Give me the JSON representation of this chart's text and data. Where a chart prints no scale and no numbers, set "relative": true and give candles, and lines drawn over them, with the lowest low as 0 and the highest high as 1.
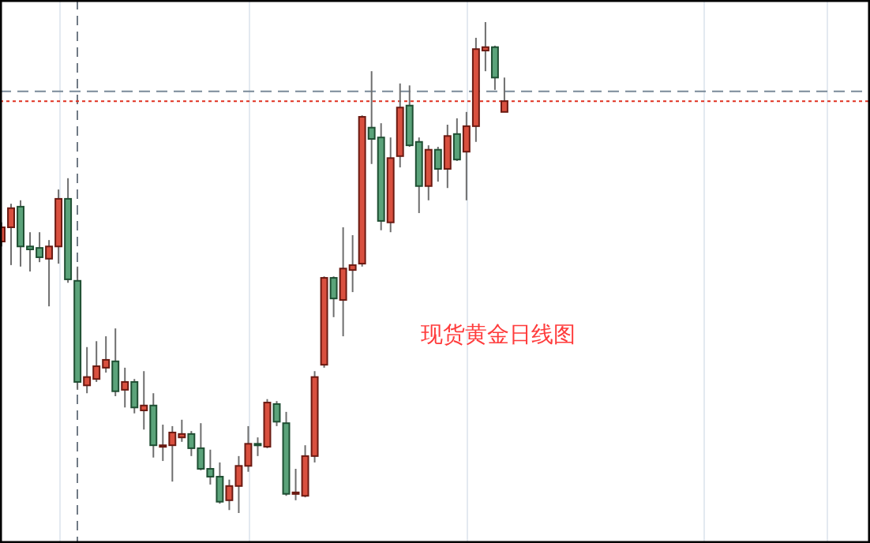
{
  "chart_data": {
    "type": "candlestick",
    "relative": true,
    "grid": "x",
    "categories": [
      null,
      null,
      null,
      null,
      null,
      null,
      null,
      null,
      null,
      null,
      null,
      null,
      null,
      null,
      null,
      null,
      null,
      null,
      null,
      null,
      null,
      null,
      null,
      null,
      null,
      null,
      null,
      null,
      null,
      null,
      null,
      null,
      null,
      null,
      null,
      null,
      null,
      null,
      null,
      null,
      null,
      null,
      null,
      null,
      null,
      null,
      null,
      null,
      null,
      null,
      null,
      null,
      null,
      null
    ],
    "ohlc": [
      [
        0.553,
        0.592,
        0.543,
        0.582
      ],
      [
        0.582,
        0.63,
        0.505,
        0.621
      ],
      [
        0.624,
        0.637,
        0.502,
        0.543
      ],
      [
        0.543,
        0.572,
        0.492,
        0.537
      ],
      [
        0.54,
        0.572,
        0.511,
        0.521
      ],
      [
        0.518,
        0.556,
        0.421,
        0.543
      ],
      [
        0.543,
        0.659,
        0.508,
        0.64
      ],
      [
        0.64,
        0.682,
        0.469,
        0.476
      ],
      [
        0.473,
        0.502,
        0.251,
        0.267
      ],
      [
        0.26,
        0.338,
        0.244,
        0.277
      ],
      [
        0.273,
        0.35,
        0.267,
        0.299
      ],
      [
        0.296,
        0.36,
        0.286,
        0.312
      ],
      [
        0.309,
        0.376,
        0.238,
        0.248
      ],
      [
        0.251,
        0.296,
        0.215,
        0.267
      ],
      [
        0.267,
        0.273,
        0.203,
        0.215
      ],
      [
        0.209,
        0.289,
        0.17,
        0.219
      ],
      [
        0.219,
        0.244,
        0.113,
        0.138
      ],
      [
        0.135,
        0.18,
        0.106,
        0.138
      ],
      [
        0.138,
        0.177,
        0.064,
        0.164
      ],
      [
        0.154,
        0.19,
        0.145,
        0.161
      ],
      [
        0.161,
        0.167,
        0.116,
        0.132
      ],
      [
        0.132,
        0.183,
        0.087,
        0.09
      ],
      [
        0.09,
        0.129,
        0.058,
        0.074
      ],
      [
        0.074,
        0.103,
        0.019,
        0.023
      ],
      [
        0.026,
        0.068,
        0.006,
        0.055
      ],
      [
        0.055,
        0.116,
        0,
        0.096
      ],
      [
        0.096,
        0.177,
        0.084,
        0.141
      ],
      [
        0.141,
        0.154,
        0.116,
        0.138
      ],
      [
        0.135,
        0.232,
        0.132,
        0.225
      ],
      [
        0.222,
        0.228,
        0.177,
        0.186
      ],
      [
        0.183,
        0.206,
        0.035,
        0.039
      ],
      [
        0.039,
        0.09,
        0.026,
        0.042
      ],
      [
        0.035,
        0.138,
        0.032,
        0.116
      ],
      [
        0.116,
        0.289,
        0.103,
        0.277
      ],
      [
        0.302,
        0.482,
        0.296,
        0.479
      ],
      [
        0.479,
        0.482,
        0.399,
        0.437
      ],
      [
        0.434,
        0.582,
        0.36,
        0.498
      ],
      [
        0.495,
        0.566,
        0.45,
        0.505
      ],
      [
        0.508,
        0.81,
        0.502,
        0.807
      ],
      [
        0.785,
        0.9,
        0.711,
        0.762
      ],
      [
        0.765,
        0.794,
        0.576,
        0.595
      ],
      [
        0.592,
        0.765,
        0.572,
        0.723
      ],
      [
        0.727,
        0.875,
        0.704,
        0.826
      ],
      [
        0.83,
        0.871,
        0.746,
        0.749
      ],
      [
        0.756,
        0.765,
        0.611,
        0.666
      ],
      [
        0.666,
        0.749,
        0.637,
        0.74
      ],
      [
        0.74,
        0.746,
        0.675,
        0.701
      ],
      [
        0.701,
        0.791,
        0.662,
        0.768
      ],
      [
        0.772,
        0.804,
        0.717,
        0.72
      ],
      [
        0.736,
        0.817,
        0.637,
        0.788
      ],
      [
        0.788,
        0.968,
        0.756,
        0.945
      ],
      [
        0.942,
        1,
        0.9,
        0.949
      ],
      [
        0.949,
        0.952,
        0.862,
        0.887
      ],
      [
        0.817,
        0.887,
        0.817,
        0.839
      ]
    ],
    "colors": [
      "#d9503f",
      "#d9503f",
      "#5ba37a",
      "#5ba37a",
      "#5ba37a",
      "#d9503f",
      "#d9503f",
      "#5ba37a",
      "#5ba37a",
      "#d9503f",
      "#d9503f",
      "#d9503f",
      "#5ba37a",
      "#d9503f",
      "#5ba37a",
      "#d9503f",
      "#5ba37a",
      "#d9503f",
      "#d9503f",
      "#d9503f",
      "#5ba37a",
      "#5ba37a",
      "#5ba37a",
      "#5ba37a",
      "#d9503f",
      "#d9503f",
      "#d9503f",
      "#5ba37a",
      "#d9503f",
      "#5ba37a",
      "#5ba37a",
      "#d9503f",
      "#d9503f",
      "#d9503f",
      "#d9503f",
      "#5ba37a",
      "#d9503f",
      "#d9503f",
      "#d9503f",
      "#5ba37a",
      "#5ba37a",
      "#d9503f",
      "#d9503f",
      "#5ba37a",
      "#5ba37a",
      "#d9503f",
      "#5ba37a",
      "#d9503f",
      "#5ba37a",
      "#d9503f",
      "#d9503f",
      "#d9503f",
      "#5ba37a",
      "#d9503f"
    ],
    "ref_lines": [
      {
        "axis": "y",
        "value": 0.859,
        "color": "#7a8a99",
        "line_style": "dashed"
      },
      {
        "axis": "y",
        "value": 0.839,
        "color": "#e03020",
        "line_style": "dotted"
      }
    ],
    "annotations": [
      "现货黄金日线图"
    ]
  }
}
